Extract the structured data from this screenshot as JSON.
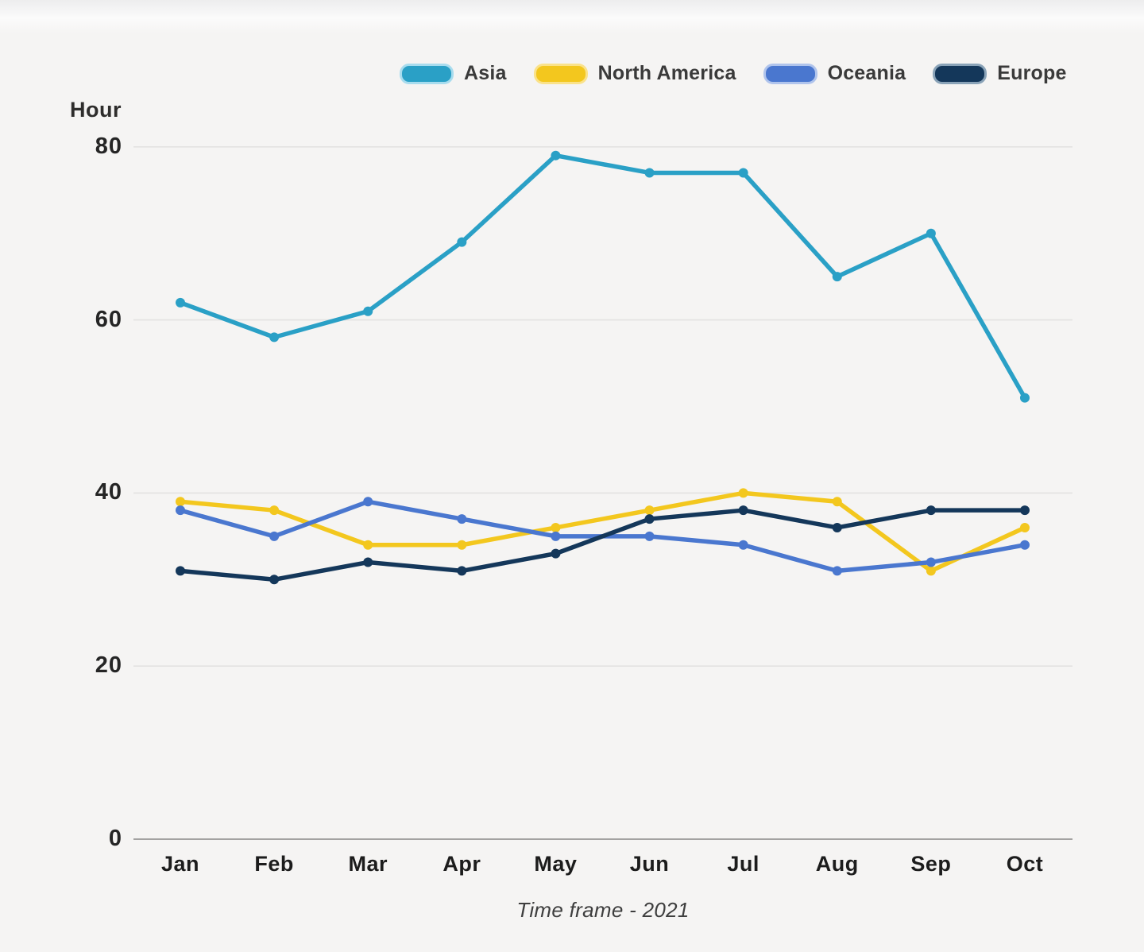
{
  "page": {
    "background": "#f5f4f3",
    "gridline_color": "#e3e2e1",
    "axis_line_color": "#a3a2a1"
  },
  "chart_data": {
    "type": "line",
    "title": "",
    "ylabel": "Hour",
    "xlabel": "Time frame - 2021",
    "categories": [
      "Jan",
      "Feb",
      "Mar",
      "Apr",
      "May",
      "Jun",
      "Jul",
      "Aug",
      "Sep",
      "Oct"
    ],
    "series": [
      {
        "name": "Asia",
        "color": "#2aa0c6",
        "light": "#a8dcee",
        "values": [
          62,
          58,
          61,
          69,
          79,
          77,
          77,
          65,
          70,
          51
        ]
      },
      {
        "name": "North America",
        "color": "#f3c71e",
        "light": "#fae28a",
        "values": [
          39,
          38,
          34,
          34,
          36,
          38,
          40,
          39,
          31,
          36
        ]
      },
      {
        "name": "Oceania",
        "color": "#4a77cf",
        "light": "#b0c4ec",
        "values": [
          38,
          35,
          39,
          37,
          35,
          35,
          34,
          31,
          32,
          34
        ]
      },
      {
        "name": "Europe",
        "color": "#14375a",
        "light": "#8aa3b8",
        "values": [
          31,
          30,
          32,
          31,
          33,
          37,
          38,
          36,
          38,
          38
        ]
      }
    ],
    "y_ticks": [
      0,
      20,
      40,
      60,
      80
    ],
    "ylim": [
      0,
      88
    ],
    "grid": "horizontal",
    "legend_position": "top"
  }
}
